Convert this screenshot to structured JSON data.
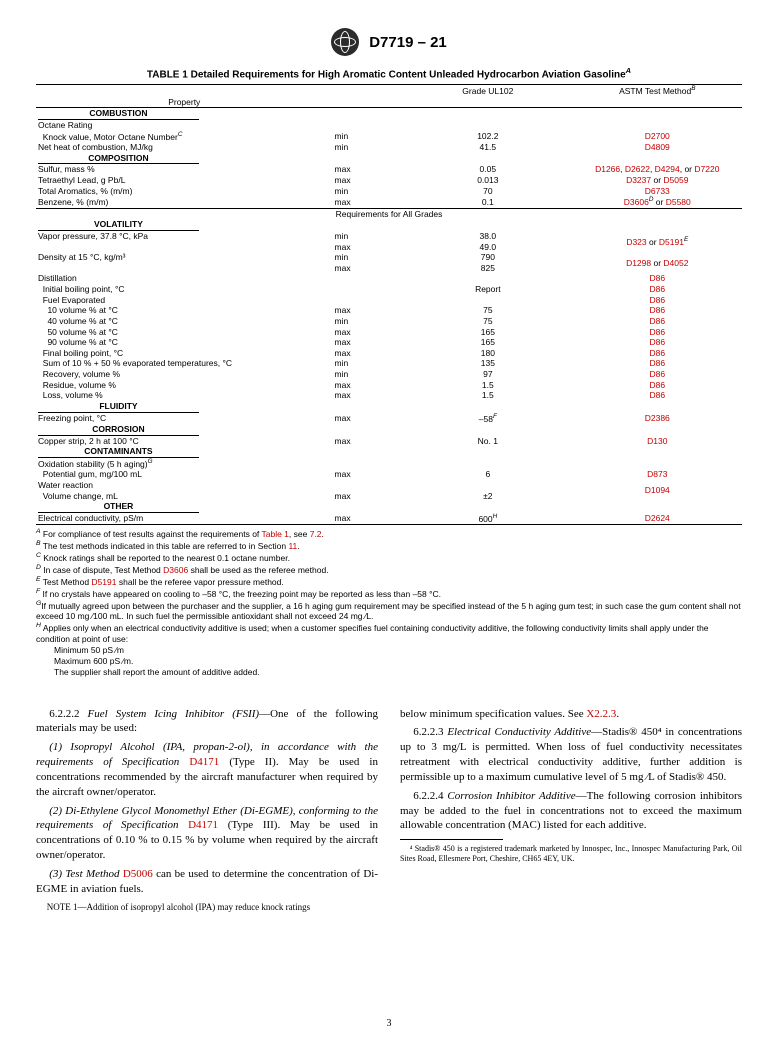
{
  "header": {
    "doc_id": "D7719 – 21",
    "page_number": "3"
  },
  "table": {
    "title_prefix": "TABLE 1 Detailed Requirements for High Aromatic Content Unleaded Hydrocarbon Aviation Gasoline",
    "title_sup": "A",
    "col_headers": {
      "property": "Property",
      "grade": "Grade UL102",
      "method": "ASTM Test Method",
      "method_sup": "B"
    },
    "mid_banner": "Requirements for All Grades",
    "sections": [
      {
        "name": "COMBUSTION",
        "rows": [
          {
            "prop": "Octane Rating",
            "limit": "",
            "value": "",
            "method": ""
          },
          {
            "prop": "  Knock value, Motor Octane Number",
            "prop_sup": "C",
            "limit": "min",
            "value": "102.2",
            "method": "D2700"
          },
          {
            "prop": "Net heat of combustion, MJ/kg",
            "limit": "min",
            "value": "41.5",
            "method": "D4809"
          }
        ]
      },
      {
        "name": "COMPOSITION",
        "rows": [
          {
            "prop": "Sulfur, mass %",
            "limit": "max",
            "value": "0.05",
            "method": "D1266, D2622, D4294, or D7220"
          },
          {
            "prop": "Tetraethyl Lead, g Pb/L",
            "limit": "max",
            "value": "0.013",
            "method": "D3237 or D5059"
          },
          {
            "prop": "Total Aromatics,  % (m/m)",
            "limit": "min",
            "value": "70",
            "method": "D6733"
          },
          {
            "prop": "Benzene,  % (m/m)",
            "limit": "max",
            "value": "0.1",
            "method": "D3606",
            "method_sup": "D",
            "method_suffix": " or D5580"
          }
        ]
      },
      {
        "name": "VOLATILITY",
        "banner_before": true,
        "rows": [
          {
            "prop": "Vapor pressure, 37.8 °C, kPa",
            "limit": "min",
            "value": "38.0",
            "method": "",
            "method_rowspan": 2,
            "method_combined": "D323 or D5191",
            "method_combined_sup": "E"
          },
          {
            "prop": "",
            "limit": "max",
            "value": "49.0"
          },
          {
            "prop": "Density at 15 °C, kg/m³",
            "limit": "min",
            "value": "790",
            "method": "",
            "method_rowspan": 2,
            "method_combined": "D1298 or D4052"
          },
          {
            "prop": "",
            "limit": "max",
            "value": "825"
          },
          {
            "prop": "Distillation",
            "limit": "",
            "value": "",
            "method": "D86"
          },
          {
            "prop": "  Initial boiling point, °C",
            "limit": "",
            "value": "Report",
            "method": "D86"
          },
          {
            "prop": "  Fuel Evaporated",
            "limit": "",
            "value": "",
            "method": "D86"
          },
          {
            "prop": "    10 volume % at °C",
            "limit": "max",
            "value": "75",
            "method": "D86"
          },
          {
            "prop": "    40 volume % at °C",
            "limit": "min",
            "value": "75",
            "method": "D86"
          },
          {
            "prop": "    50 volume % at °C",
            "limit": "max",
            "value": "165",
            "method": "D86"
          },
          {
            "prop": "    90 volume % at °C",
            "limit": "max",
            "value": "165",
            "method": "D86"
          },
          {
            "prop": "  Final boiling point, °C",
            "limit": "max",
            "value": "180",
            "method": "D86"
          },
          {
            "prop": "  Sum of 10 % + 50 % evaporated temperatures, °C",
            "limit": "min",
            "value": "135",
            "method": "D86"
          },
          {
            "prop": "  Recovery, volume %",
            "limit": "min",
            "value": "97",
            "method": "D86"
          },
          {
            "prop": "  Residue, volume %",
            "limit": "max",
            "value": "1.5",
            "method": "D86"
          },
          {
            "prop": "  Loss, volume %",
            "limit": "max",
            "value": "1.5",
            "method": "D86"
          }
        ]
      },
      {
        "name": "FLUIDITY",
        "rows": [
          {
            "prop": "Freezing point, °C",
            "limit": "max",
            "value": "–58",
            "value_sup": "F",
            "method": "D2386"
          }
        ]
      },
      {
        "name": "CORROSION",
        "rows": [
          {
            "prop": "Copper strip, 2 h at 100 °C",
            "limit": "max",
            "value": "No. 1",
            "method": "D130"
          }
        ]
      },
      {
        "name": "CONTAMINANTS",
        "rows": [
          {
            "prop": "Oxidation stability (5 h aging)",
            "prop_sup": "G",
            "limit": "",
            "value": "",
            "method": ""
          },
          {
            "prop": "  Potential gum, mg/100 mL",
            "limit": "max",
            "value": "6",
            "method": "D873"
          },
          {
            "prop": "Water reaction",
            "limit": "",
            "value": "",
            "method": "",
            "method_rowspan": 2,
            "method_combined": "D1094"
          },
          {
            "prop": "  Volume change, mL",
            "limit": "max",
            "value": "±2"
          }
        ]
      },
      {
        "name": "OTHER",
        "rows": [
          {
            "prop": "Electrical conductivity, pS/m",
            "limit": "max",
            "value": "600",
            "value_sup": "H",
            "method": "D2624"
          }
        ]
      }
    ],
    "footnotes": [
      {
        "sup": "A",
        "text": " For compliance of test results against the requirements of ",
        "link": "Table 1",
        "text2": ", see ",
        "link2": "7.2",
        "text3": "."
      },
      {
        "sup": "B",
        "text": " The test methods indicated in this table are referred to in Section ",
        "link": "11",
        "text2": "."
      },
      {
        "sup": "C",
        "text": " Knock ratings shall be reported to the nearest 0.1 octane number."
      },
      {
        "sup": "D",
        "text": " In case of dispute, Test Method ",
        "link": "D3606",
        "text2": " shall be used as the referee method."
      },
      {
        "sup": "E",
        "text": " Test Method ",
        "link": "D5191",
        "text2": " shall be the referee vapor pressure method."
      },
      {
        "sup": "F",
        "text": " If no crystals have appeared on cooling to –58 °C, the freezing point may be reported as less than –58 °C."
      },
      {
        "sup": "G",
        "text": "If mutually agreed upon between the purchaser and the supplier, a 16 h aging gum requirement may be specified instead of the 5 h aging gum test; in such case the gum content shall not exceed 10 mg ⁄100 mL. In such fuel the permissible antioxidant shall not exceed 24 mg ⁄L."
      },
      {
        "sup": "H",
        "text": " Applies only when an electrical conductivity additive is used; when a customer specifies fuel containing conductivity additive, the following conductivity limits shall apply under the condition at point of use:"
      }
    ],
    "footnote_extra": [
      "Minimum 50 pS ⁄m",
      "Maximum 600 pS ⁄m.",
      "The supplier shall report the amount of additive added."
    ]
  },
  "body": {
    "left": {
      "p1_head": "6.2.2.2 ",
      "p1_title": "Fuel System Icing Inhibitor (FSII)",
      "p1_rest": "—One of the following materials may be used:",
      "p2": "(1) Isopropyl Alcohol (IPA, propan-2-ol), in accordance with the requirements of Specification ",
      "p2_link": "D4171",
      "p2_rest": " (Type II). May be used in concentrations recommended by the aircraft manufacturer when required by the aircraft owner/operator.",
      "p3": "(2) Di-Ethylene Glycol Monomethyl Ether (Di-EGME), conforming to the requirements of Specification ",
      "p3_link": "D4171",
      "p3_rest": " (Type III). May be used in concentrations of 0.10 % to 0.15 % by volume when required by the aircraft owner/operator.",
      "p4": "(3) Test Method ",
      "p4_link": "D5006",
      "p4_rest": " can be used to determine the concentration of Di-EGME in aviation fuels.",
      "note_label": "NOTE 1—",
      "note_text": "Addition of isopropyl alcohol (IPA) may reduce knock ratings"
    },
    "right": {
      "p0": "below minimum specification values. See ",
      "p0_link": "X2.2.3",
      "p0_rest": ".",
      "p1_head": "6.2.2.3 ",
      "p1_title": "Electrical Conductivity Additive",
      "p1_rest": "—Stadis® 450⁴ in concentrations up to 3 mg/L is permitted. When loss of fuel conductivity necessitates retreatment with electrical conductivity additive, further addition is permissible up to a maximum cumulative level of 5 mg ⁄L of Stadis® 450.",
      "p2_head": "6.2.2.4 ",
      "p2_title": "Corrosion Inhibitor Additive",
      "p2_rest": "—The following corrosion inhibitors may be added to the fuel in concentrations not to exceed the maximum allowable concentration (MAC) listed for each additive.",
      "fn4": "⁴ Stadis® 450 is a registered trademark marketed by Innospec, Inc., Innospec Manufacturing Park, Oil Sites Road, Ellesmere Port, Cheshire, CH65 4EY, UK."
    }
  }
}
